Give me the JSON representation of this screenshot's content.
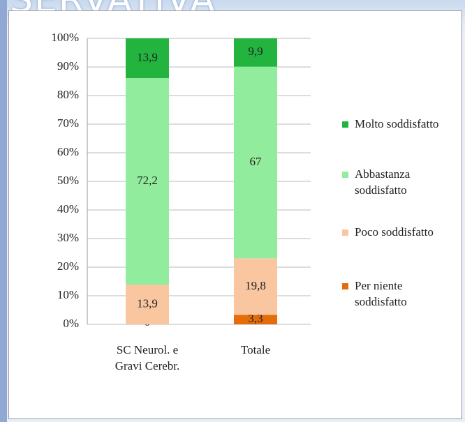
{
  "page_header": "SERVATIVA",
  "chart_data": {
    "type": "stacked-bar",
    "categories": [
      "SC Neurol. e Gravi Cerebr.",
      "Totale"
    ],
    "series": [
      {
        "name": "Per niente soddisfatto",
        "color": "#e46c0a",
        "values": [
          0,
          3.3
        ],
        "value_labels": [
          "0",
          "3,3"
        ]
      },
      {
        "name": "Poco soddisfatto",
        "color": "#f9c6a0",
        "values": [
          13.9,
          19.8
        ],
        "value_labels": [
          "13,9",
          "19,8"
        ]
      },
      {
        "name": "Abbastanza soddisfatto",
        "color": "#92ec9e",
        "values": [
          72.2,
          67
        ],
        "value_labels": [
          "72,2",
          "67"
        ]
      },
      {
        "name": "Molto soddisfatto",
        "color": "#22b43f",
        "values": [
          13.9,
          9.9
        ],
        "value_labels": [
          "13,9",
          "9,9"
        ]
      }
    ],
    "ylim": [
      0,
      100
    ],
    "yticks": [
      {
        "value": 0,
        "label": "0%"
      },
      {
        "value": 10,
        "label": "10%"
      },
      {
        "value": 20,
        "label": "20%"
      },
      {
        "value": 30,
        "label": "30%"
      },
      {
        "value": 40,
        "label": "40%"
      },
      {
        "value": 50,
        "label": "50%"
      },
      {
        "value": 60,
        "label": "60%"
      },
      {
        "value": 70,
        "label": "70%"
      },
      {
        "value": 80,
        "label": "80%"
      },
      {
        "value": 90,
        "label": "90%"
      },
      {
        "value": 100,
        "label": "100%"
      }
    ],
    "grid": true,
    "legend": "right"
  }
}
